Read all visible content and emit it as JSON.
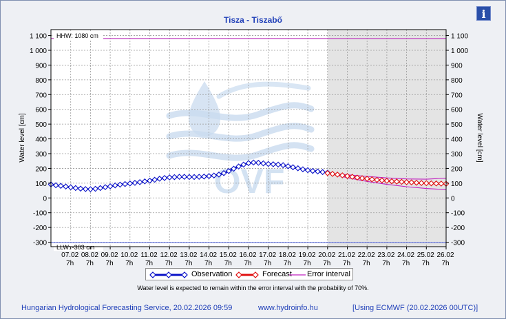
{
  "title": "Tisza - Tiszabő",
  "info_glyph": "i",
  "legend": {
    "observation": "Observation",
    "forecast": "Forecast",
    "error_interval": "Error interval"
  },
  "note": "Water level is expected to remain within the error interval with the probability of 70%.",
  "footer": {
    "service": "Hungarian Hydrological Forecasting Service, 20.02.2026 09:59",
    "url": "www.hydroinfo.hu",
    "model": "[Using ECMWF (20.02.2026  00UTC)]"
  },
  "colors": {
    "observation": "#0a12c8",
    "forecast": "#e01010",
    "error_interval": "#c020c0",
    "hhw_line": "#c040c0",
    "llw_line": "#7080e8",
    "forecast_bg": "#e4e4e4",
    "title": "#1f3fb8",
    "watermark": "#c9dbef"
  },
  "watermark_text": "OVF",
  "chart_data": {
    "type": "line",
    "title": "Tisza - Tiszabő",
    "ylabel": "Water level [cm]",
    "ylabel_right": "Water level [cm]",
    "ylim": [
      -330,
      1140
    ],
    "y_ticks": [
      -300,
      -200,
      -100,
      0,
      100,
      200,
      300,
      400,
      500,
      600,
      700,
      800,
      900,
      1000,
      1100
    ],
    "y_tick_labels": [
      "-300",
      "-200",
      "-100",
      "0",
      "100",
      "200",
      "300",
      "400",
      "500",
      "600",
      "700",
      "800",
      "900",
      "1 000",
      "1 100"
    ],
    "x_range_days": [
      6.0,
      26.0
    ],
    "x_ticks": [
      {
        "day": 7,
        "date": "07.02",
        "hour": "7h"
      },
      {
        "day": 8,
        "date": "08.02",
        "hour": "7h"
      },
      {
        "day": 9,
        "date": "09.02",
        "hour": "7h"
      },
      {
        "day": 10,
        "date": "10.02",
        "hour": "7h"
      },
      {
        "day": 11,
        "date": "11.02",
        "hour": "7h"
      },
      {
        "day": 12,
        "date": "12.02",
        "hour": "7h"
      },
      {
        "day": 13,
        "date": "13.02",
        "hour": "7h"
      },
      {
        "day": 14,
        "date": "14.02",
        "hour": "7h"
      },
      {
        "day": 15,
        "date": "15.02",
        "hour": "7h"
      },
      {
        "day": 16,
        "date": "16.02",
        "hour": "7h"
      },
      {
        "day": 17,
        "date": "17.02",
        "hour": "7h"
      },
      {
        "day": 18,
        "date": "18.02",
        "hour": "7h"
      },
      {
        "day": 19,
        "date": "19.02",
        "hour": "7h"
      },
      {
        "day": 20,
        "date": "20.02",
        "hour": "7h"
      },
      {
        "day": 21,
        "date": "21.02",
        "hour": "7h"
      },
      {
        "day": 22,
        "date": "22.02",
        "hour": "7h"
      },
      {
        "day": 23,
        "date": "23.02",
        "hour": "7h"
      },
      {
        "day": 24,
        "date": "24.02",
        "hour": "7h"
      },
      {
        "day": 25,
        "date": "25.02",
        "hour": "7h"
      },
      {
        "day": 26,
        "date": "26.02",
        "hour": "7h"
      }
    ],
    "grid": true,
    "forecast_region_start_day": 20.0,
    "reference_lines": [
      {
        "label": "HHW: 1080 cm",
        "value": 1080
      },
      {
        "label": "LLW: -303 cm",
        "value": -303
      }
    ],
    "series": [
      {
        "name": "Observation",
        "style": "line-with-diamonds",
        "points": [
          [
            6.0,
            92
          ],
          [
            6.25,
            86
          ],
          [
            6.5,
            82
          ],
          [
            6.75,
            77
          ],
          [
            7.0,
            72
          ],
          [
            7.25,
            67
          ],
          [
            7.5,
            63
          ],
          [
            7.75,
            60
          ],
          [
            8.0,
            59
          ],
          [
            8.25,
            62
          ],
          [
            8.5,
            67
          ],
          [
            8.75,
            73
          ],
          [
            9.0,
            79
          ],
          [
            9.25,
            85
          ],
          [
            9.5,
            90
          ],
          [
            9.75,
            94
          ],
          [
            10.0,
            98
          ],
          [
            10.25,
            102
          ],
          [
            10.5,
            107
          ],
          [
            10.75,
            112
          ],
          [
            11.0,
            117
          ],
          [
            11.25,
            123
          ],
          [
            11.5,
            130
          ],
          [
            11.75,
            135
          ],
          [
            12.0,
            139
          ],
          [
            12.25,
            141
          ],
          [
            12.5,
            143
          ],
          [
            12.75,
            143
          ],
          [
            13.0,
            142
          ],
          [
            13.25,
            142
          ],
          [
            13.5,
            143
          ],
          [
            13.75,
            145
          ],
          [
            14.0,
            148
          ],
          [
            14.25,
            152
          ],
          [
            14.5,
            158
          ],
          [
            14.75,
            168
          ],
          [
            15.0,
            182
          ],
          [
            15.25,
            198
          ],
          [
            15.5,
            213
          ],
          [
            15.75,
            226
          ],
          [
            16.0,
            236
          ],
          [
            16.25,
            240
          ],
          [
            16.5,
            238
          ],
          [
            16.75,
            234
          ],
          [
            17.0,
            230
          ],
          [
            17.25,
            228
          ],
          [
            17.5,
            226
          ],
          [
            17.75,
            222
          ],
          [
            18.0,
            215
          ],
          [
            18.25,
            208
          ],
          [
            18.5,
            201
          ],
          [
            18.75,
            194
          ],
          [
            19.0,
            188
          ],
          [
            19.25,
            183
          ],
          [
            19.5,
            179
          ],
          [
            19.75,
            175
          ],
          [
            20.0,
            171
          ]
        ]
      },
      {
        "name": "Forecast",
        "style": "line-with-diamonds",
        "points": [
          [
            20.0,
            168
          ],
          [
            20.25,
            163
          ],
          [
            20.5,
            158
          ],
          [
            20.75,
            153
          ],
          [
            21.0,
            148
          ],
          [
            21.25,
            143
          ],
          [
            21.5,
            138
          ],
          [
            21.75,
            134
          ],
          [
            22.0,
            130
          ],
          [
            22.25,
            126
          ],
          [
            22.5,
            122
          ],
          [
            22.75,
            119
          ],
          [
            23.0,
            116
          ],
          [
            23.25,
            113
          ],
          [
            23.5,
            111
          ],
          [
            23.75,
            109
          ],
          [
            24.0,
            107
          ],
          [
            24.25,
            105
          ],
          [
            24.5,
            103
          ],
          [
            24.75,
            101
          ],
          [
            25.0,
            100
          ],
          [
            25.25,
            99
          ],
          [
            25.5,
            98
          ],
          [
            25.75,
            97
          ],
          [
            26.0,
            96
          ]
        ]
      },
      {
        "name": "Error interval upper",
        "style": "line",
        "points": [
          [
            20.0,
            168
          ],
          [
            21.0,
            157
          ],
          [
            22.0,
            146
          ],
          [
            23.0,
            136
          ],
          [
            24.0,
            129
          ],
          [
            25.0,
            127
          ],
          [
            26.0,
            134
          ]
        ]
      },
      {
        "name": "Error interval lower",
        "style": "line",
        "points": [
          [
            20.0,
            168
          ],
          [
            21.0,
            137
          ],
          [
            22.0,
            112
          ],
          [
            23.0,
            92
          ],
          [
            24.0,
            76
          ],
          [
            25.0,
            64
          ],
          [
            26.0,
            56
          ]
        ]
      }
    ]
  }
}
